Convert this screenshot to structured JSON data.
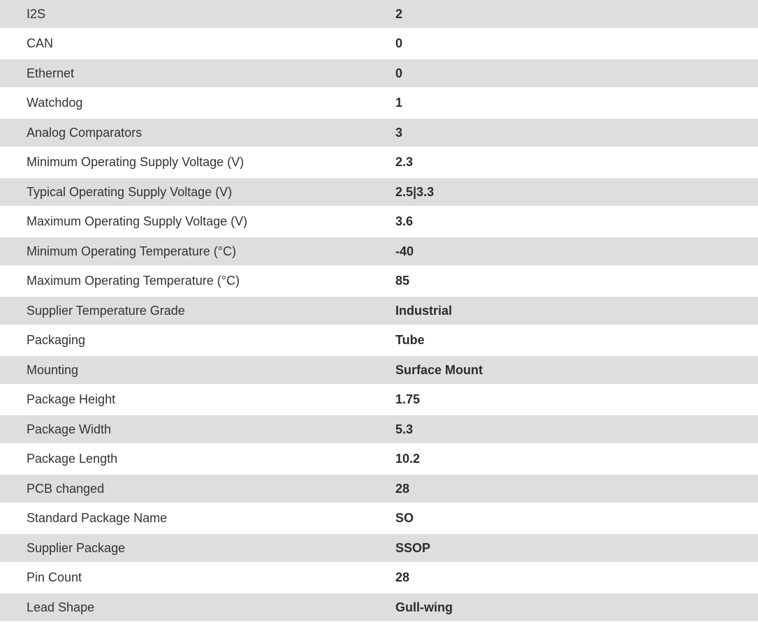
{
  "colors": {
    "row_alt": "#dedede",
    "row": "#ffffff",
    "text": "#333333"
  },
  "specs": [
    {
      "label": "I2S",
      "value": "2"
    },
    {
      "label": "CAN",
      "value": "0"
    },
    {
      "label": "Ethernet",
      "value": "0"
    },
    {
      "label": "Watchdog",
      "value": "1"
    },
    {
      "label": "Analog Comparators",
      "value": "3"
    },
    {
      "label": "Minimum Operating Supply Voltage (V)",
      "value": "2.3"
    },
    {
      "label": "Typical Operating Supply Voltage (V)",
      "value": "2.5|3.3"
    },
    {
      "label": "Maximum Operating Supply Voltage (V)",
      "value": "3.6"
    },
    {
      "label": "Minimum Operating Temperature (°C)",
      "value": "-40"
    },
    {
      "label": "Maximum Operating Temperature (°C)",
      "value": "85"
    },
    {
      "label": "Supplier Temperature Grade",
      "value": "Industrial"
    },
    {
      "label": "Packaging",
      "value": "Tube"
    },
    {
      "label": "Mounting",
      "value": "Surface Mount"
    },
    {
      "label": "Package Height",
      "value": "1.75"
    },
    {
      "label": "Package Width",
      "value": "5.3"
    },
    {
      "label": "Package Length",
      "value": "10.2"
    },
    {
      "label": "PCB changed",
      "value": "28"
    },
    {
      "label": "Standard Package Name",
      "value": "SO"
    },
    {
      "label": "Supplier Package",
      "value": "SSOP"
    },
    {
      "label": "Pin Count",
      "value": "28"
    },
    {
      "label": "Lead Shape",
      "value": "Gull-wing"
    }
  ]
}
